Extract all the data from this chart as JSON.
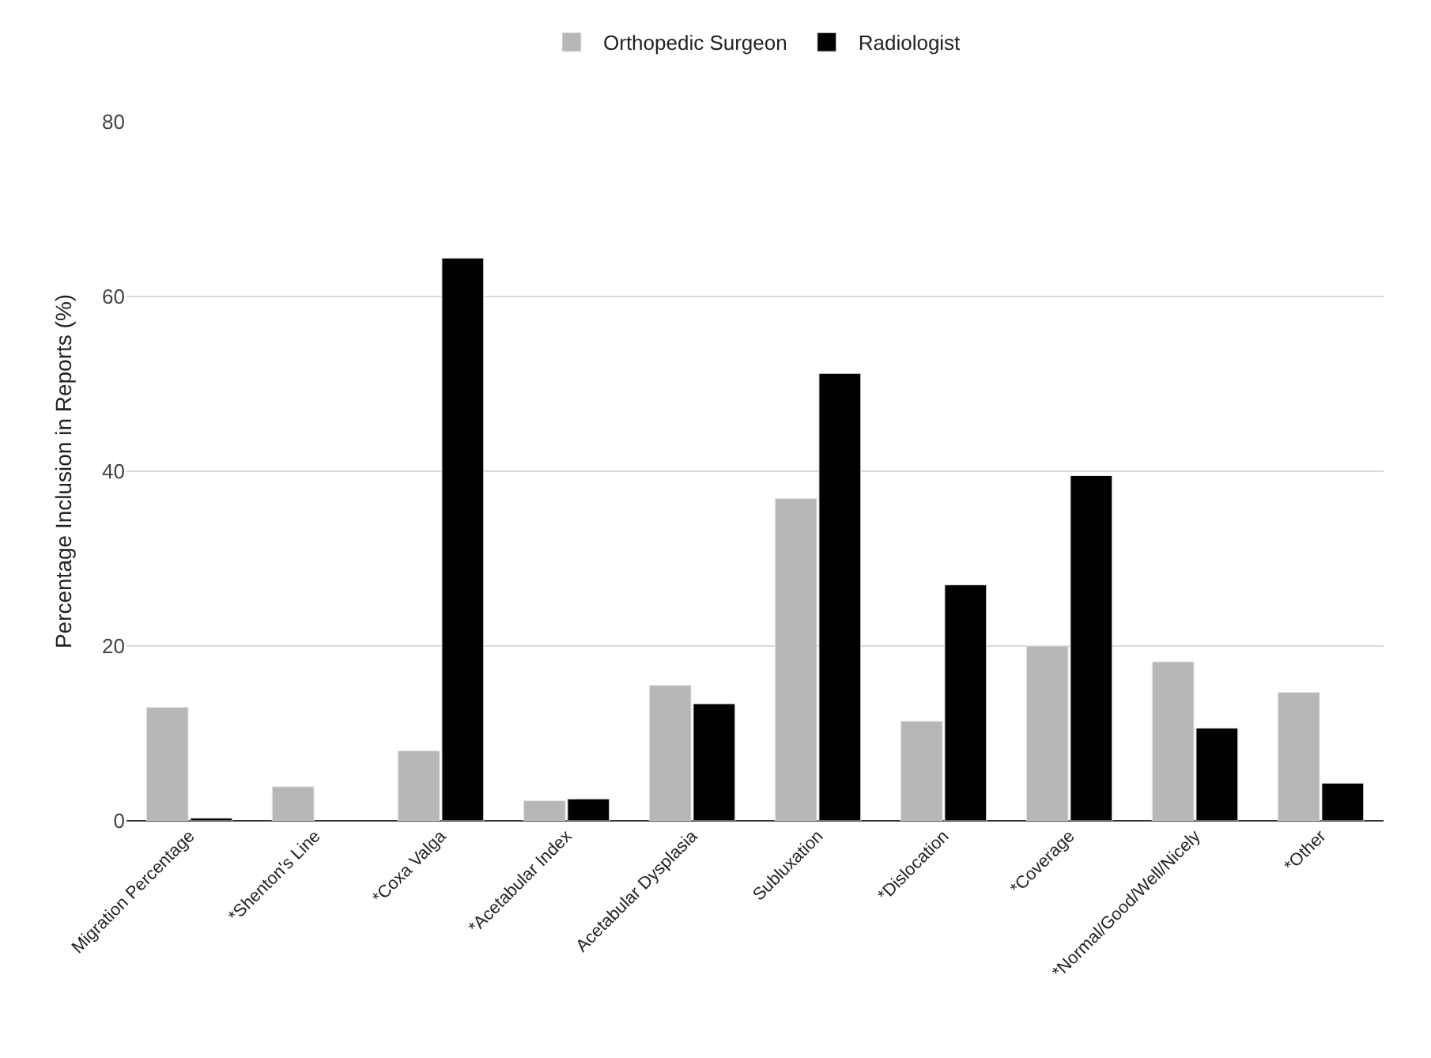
{
  "chart_data": {
    "type": "bar",
    "ylabel": "Percentage Inclusion in Reports (%)",
    "categories": [
      "Migration Percentage",
      "*Shenton's Line",
      "*Coxa Valga",
      "*Acetabular Index",
      "Acetabular Dysplasia",
      "Subluxation",
      "*Dislocation",
      "*Coverage",
      "*Normal/Good/Well/Nicely",
      "*Other"
    ],
    "series": [
      {
        "name": "Orthopedic Surgeon",
        "color": "#b7b7b7",
        "values": [
          13,
          3.9,
          8,
          2.3,
          15.5,
          36.9,
          11.4,
          20,
          18.2,
          14.7
        ]
      },
      {
        "name": "Radiologist",
        "color": "#000000",
        "values": [
          0.3,
          null,
          64.4,
          2.5,
          13.4,
          51.2,
          27,
          39.5,
          10.6,
          4.3
        ]
      }
    ],
    "ylim": [
      0,
      80
    ],
    "yticks": [
      0,
      20,
      40,
      60,
      80
    ],
    "grid": "y",
    "legend": "top"
  }
}
